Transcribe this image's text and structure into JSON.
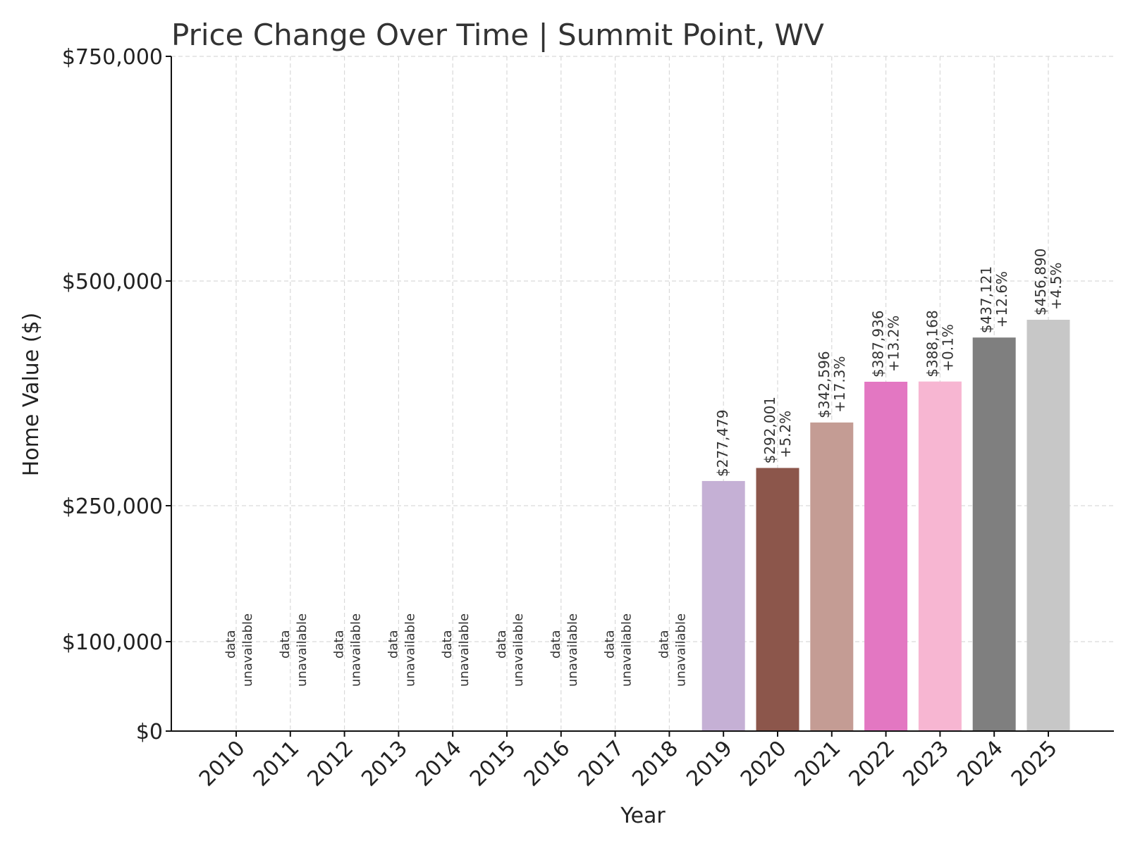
{
  "chart_data": {
    "type": "bar",
    "title": "Price Change Over Time | Summit Point, WV",
    "xlabel": "Year",
    "ylabel": "Home Value ($)",
    "ylim": [
      0,
      750000
    ],
    "yticks": [
      0,
      100000,
      250000,
      500000,
      750000
    ],
    "ytick_labels": [
      "$0",
      "$100,000",
      "$250,000",
      "$500,000",
      "$750,000"
    ],
    "grid": true,
    "categories": [
      "2010",
      "2011",
      "2012",
      "2013",
      "2014",
      "2015",
      "2016",
      "2017",
      "2018",
      "2019",
      "2020",
      "2021",
      "2022",
      "2023",
      "2024",
      "2025"
    ],
    "values": [
      null,
      null,
      null,
      null,
      null,
      null,
      null,
      null,
      null,
      277479,
      292001,
      342596,
      387936,
      388168,
      437121,
      456890
    ],
    "value_labels": [
      "",
      "",
      "",
      "",
      "",
      "",
      "",
      "",
      "",
      "$277,479",
      "$292,001",
      "$342,596",
      "$387,936",
      "$388,168",
      "$437,121",
      "$456,890"
    ],
    "change_labels": [
      "",
      "",
      "",
      "",
      "",
      "",
      "",
      "",
      "",
      "",
      "+5.2%",
      "+17.3%",
      "+13.2%",
      "+0.1%",
      "+12.6%",
      "+4.5%"
    ],
    "unavailable_label": [
      "data",
      "unavailable"
    ],
    "colors": [
      "",
      "",
      "",
      "",
      "",
      "",
      "",
      "",
      "",
      "#c5b0d5",
      "#8c564b",
      "#c49c94",
      "#e377c2",
      "#f7b6d2",
      "#7f7f7f",
      "#c7c7c7"
    ]
  }
}
